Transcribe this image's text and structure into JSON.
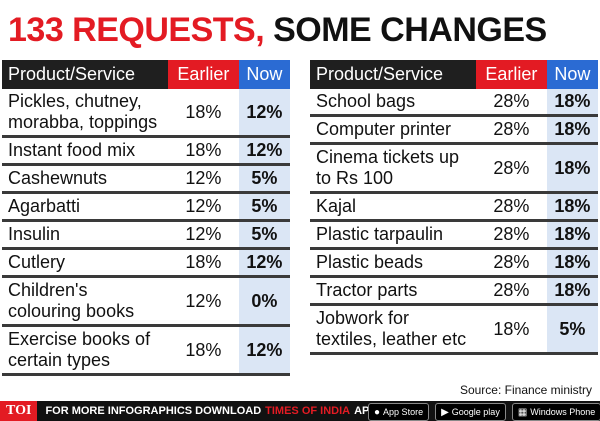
{
  "headline": {
    "part1": "133 REQUESTS,",
    "part2": "SOME CHANGES"
  },
  "columns": {
    "product": "Product/Service",
    "earlier": "Earlier",
    "now": "Now"
  },
  "left_rows": [
    {
      "product": "Pickles, chutney, morabba, toppings",
      "earlier": "18%",
      "now": "12%"
    },
    {
      "product": "Instant food mix",
      "earlier": "18%",
      "now": "12%"
    },
    {
      "product": "Cashewnuts",
      "earlier": "12%",
      "now": "5%"
    },
    {
      "product": "Agarbatti",
      "earlier": "12%",
      "now": "5%"
    },
    {
      "product": "Insulin",
      "earlier": "12%",
      "now": "5%"
    },
    {
      "product": "Cutlery",
      "earlier": "18%",
      "now": "12%"
    },
    {
      "product": "Children's colouring books",
      "earlier": "12%",
      "now": "0%"
    },
    {
      "product": "Exercise books of certain types",
      "earlier": "18%",
      "now": "12%"
    }
  ],
  "right_rows": [
    {
      "product": "School bags",
      "earlier": "28%",
      "now": "18%"
    },
    {
      "product": "Computer printer",
      "earlier": "28%",
      "now": "18%"
    },
    {
      "product": "Cinema tickets up to Rs 100",
      "earlier": "28%",
      "now": "18%"
    },
    {
      "product": "Kajal",
      "earlier": "28%",
      "now": "18%"
    },
    {
      "product": "Plastic tarpaulin",
      "earlier": "28%",
      "now": "18%"
    },
    {
      "product": "Plastic beads",
      "earlier": "28%",
      "now": "18%"
    },
    {
      "product": "Tractor parts",
      "earlier": "28%",
      "now": "18%"
    },
    {
      "product": "Jobwork for textiles, leather etc",
      "earlier": "18%",
      "now": "5%"
    }
  ],
  "source": "Source: Finance ministry",
  "footer": {
    "logo": "TOI",
    "text": "FOR MORE INFOGRAPHICS DOWNLOAD",
    "brand": "TIMES OF INDIA",
    "app": "APP",
    "badges": [
      "App Store",
      "Google play",
      "Windows Phone"
    ]
  },
  "colors": {
    "accent_red": "#e31b23",
    "now_blue": "#2b6bd3",
    "now_cell_bg": "#dbe6f5"
  }
}
